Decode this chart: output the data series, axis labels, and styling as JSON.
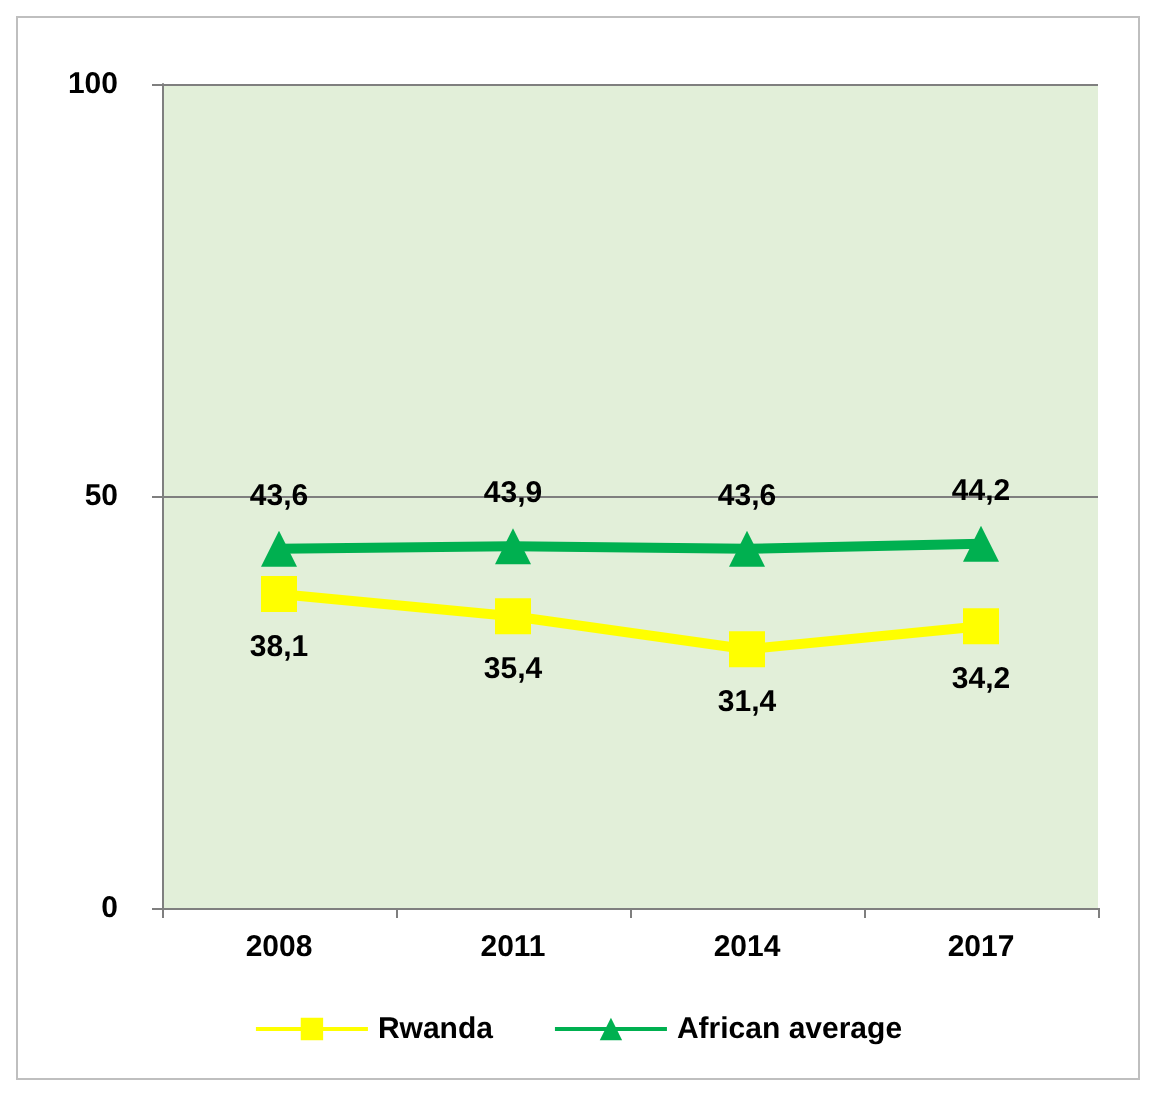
{
  "chart_data": {
    "type": "line",
    "categories": [
      "2008",
      "2011",
      "2014",
      "2017"
    ],
    "series": [
      {
        "name": "Rwanda",
        "color": "#ffff00",
        "marker": "square",
        "values": [
          38.1,
          35.4,
          31.4,
          34.2
        ],
        "value_labels": [
          "38,1",
          "35,4",
          "31,4",
          "34,2"
        ]
      },
      {
        "name": "African average",
        "color": "#00b050",
        "marker": "triangle",
        "values": [
          43.6,
          43.9,
          43.6,
          44.2
        ],
        "value_labels": [
          "43,6",
          "43,9",
          "43,6",
          "44,2"
        ]
      }
    ],
    "ylim": [
      0,
      100
    ],
    "yticks": [
      0,
      50,
      100
    ],
    "grid": "y",
    "legend": "bottom"
  }
}
